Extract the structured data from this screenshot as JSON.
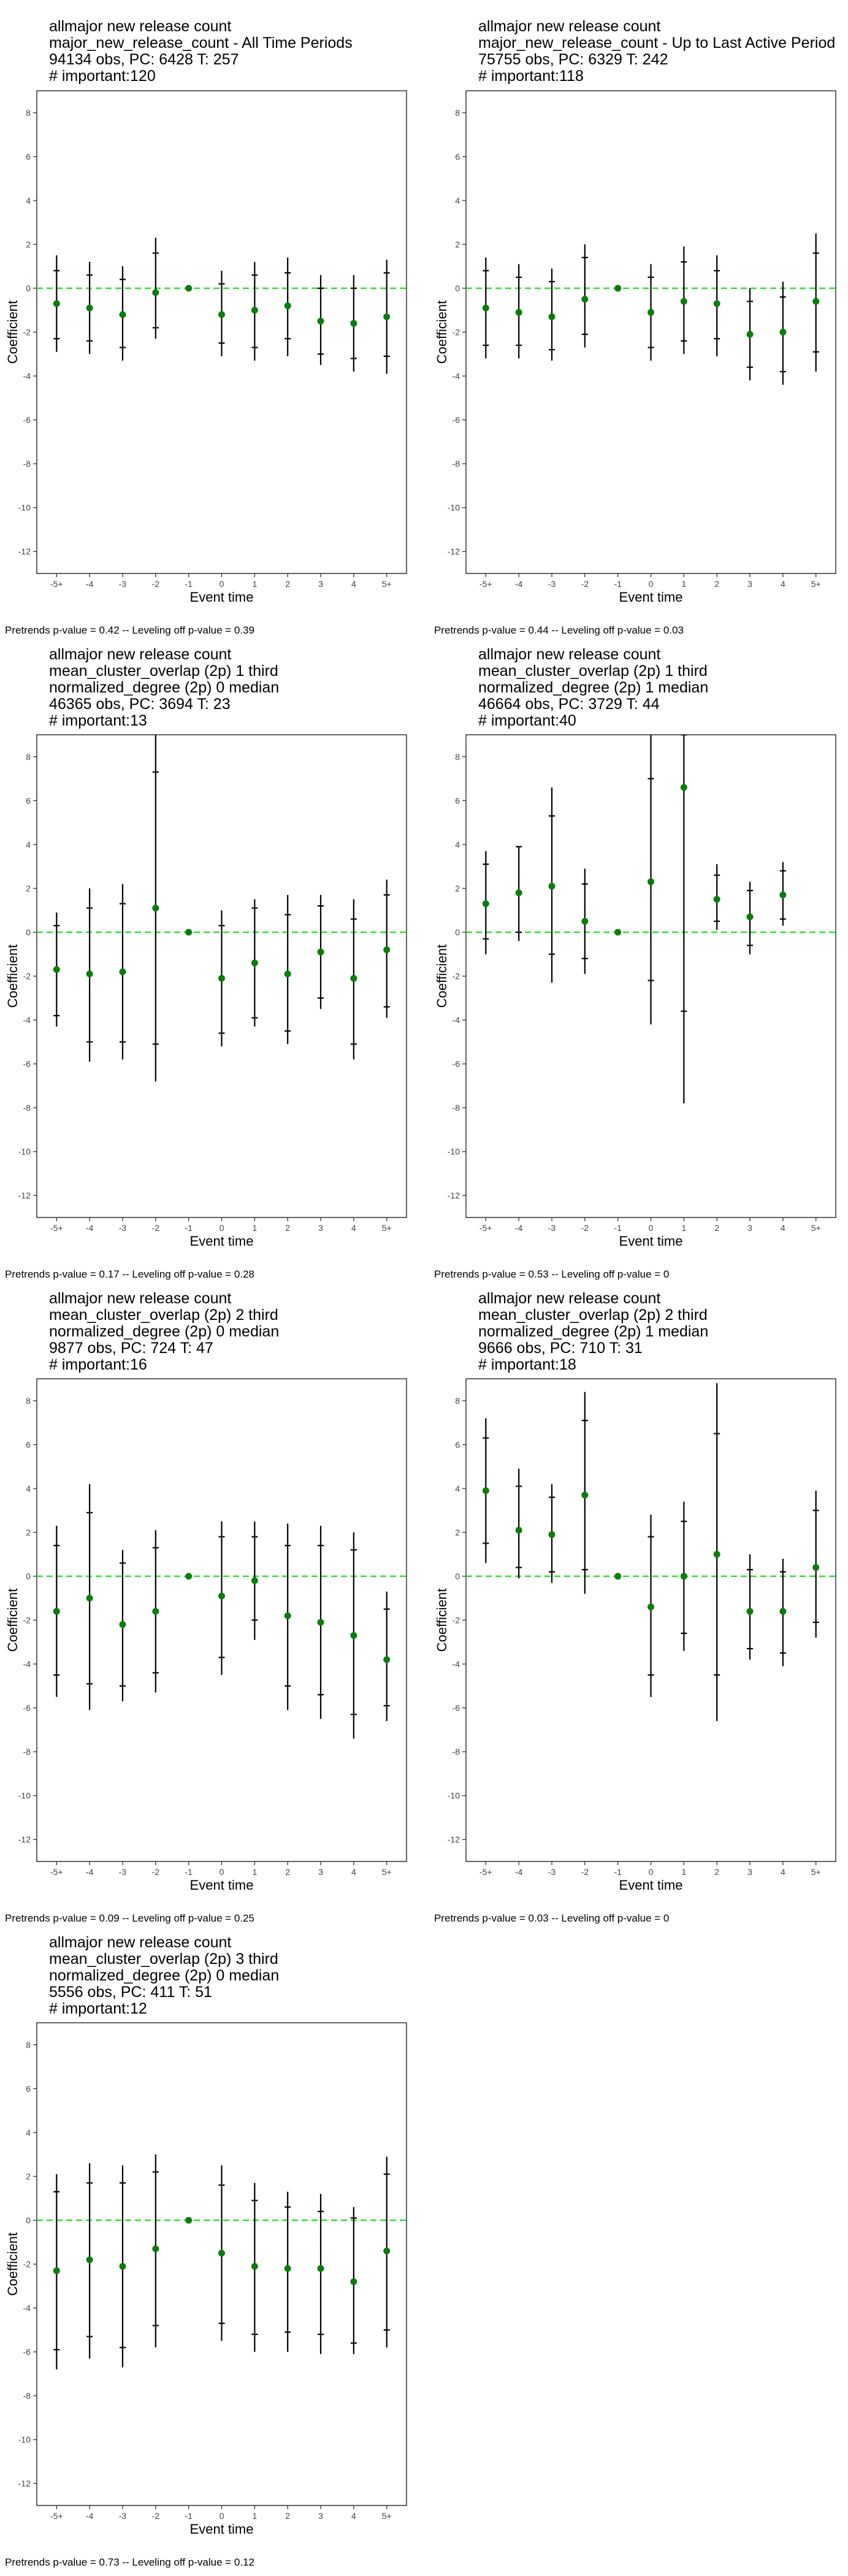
{
  "colors": {
    "point": "#0a7d0a",
    "zero_line": "#33dd33",
    "error_bar": "#000000",
    "frame": "#333333"
  },
  "chart_data": [
    {
      "type": "scatter",
      "title_lines": [
        "allmajor new release count",
        "major_new_release_count - All Time Periods",
        "94134 obs, PC: 6428 T: 257",
        "# important:120"
      ],
      "xlabel": "Event time",
      "ylabel": "Coefficient",
      "categories": [
        "-5+",
        "-4",
        "-3",
        "-2",
        "-1",
        "0",
        "1",
        "2",
        "3",
        "4",
        "5+"
      ],
      "ylim": [
        -13,
        9
      ],
      "yticks": [
        8,
        6,
        4,
        2,
        0,
        -2,
        -4,
        -6,
        -8,
        -10,
        -12
      ],
      "reference_line": 0,
      "series": [
        {
          "values": [
            -0.7,
            -0.9,
            -1.2,
            -0.2,
            0,
            -1.2,
            -1.0,
            -0.8,
            -1.5,
            -1.6,
            -1.3
          ],
          "ci95": [
            [
              -2.9,
              1.5
            ],
            [
              -3.0,
              1.2
            ],
            [
              -3.3,
              1.0
            ],
            [
              -2.3,
              2.3
            ],
            [
              0,
              0
            ],
            [
              -3.1,
              0.8
            ],
            [
              -3.3,
              1.2
            ],
            [
              -3.1,
              1.4
            ],
            [
              -3.5,
              0.6
            ],
            [
              -3.8,
              0.6
            ],
            [
              -3.9,
              1.3
            ]
          ],
          "ci90": [
            [
              -2.3,
              0.8
            ],
            [
              -2.4,
              0.6
            ],
            [
              -2.7,
              0.4
            ],
            [
              -1.8,
              1.6
            ],
            [
              0,
              0
            ],
            [
              -2.5,
              0.2
            ],
            [
              -2.7,
              0.6
            ],
            [
              -2.3,
              0.7
            ],
            [
              -3.0,
              0.0
            ],
            [
              -3.2,
              0.0
            ],
            [
              -3.1,
              0.7
            ]
          ]
        }
      ],
      "caption": "Pretrends p-value = 0.42 -- Leveling off p-value = 0.39"
    },
    {
      "type": "scatter",
      "title_lines": [
        "allmajor new release count",
        "major_new_release_count - Up to Last Active Period",
        "75755 obs, PC: 6329 T: 242",
        "# important:118"
      ],
      "xlabel": "Event time",
      "ylabel": "Coefficient",
      "categories": [
        "-5+",
        "-4",
        "-3",
        "-2",
        "-1",
        "0",
        "1",
        "2",
        "3",
        "4",
        "5+"
      ],
      "ylim": [
        -13,
        9
      ],
      "yticks": [
        8,
        6,
        4,
        2,
        0,
        -2,
        -4,
        -6,
        -8,
        -10,
        -12
      ],
      "reference_line": 0,
      "series": [
        {
          "values": [
            -0.9,
            -1.1,
            -1.3,
            -0.5,
            0,
            -1.1,
            -0.6,
            -0.7,
            -2.1,
            -2.0,
            -0.6
          ],
          "ci95": [
            [
              -3.2,
              1.4
            ],
            [
              -3.2,
              1.1
            ],
            [
              -3.3,
              0.9
            ],
            [
              -2.7,
              2.0
            ],
            [
              0,
              0
            ],
            [
              -3.3,
              1.1
            ],
            [
              -3.0,
              1.9
            ],
            [
              -3.1,
              1.5
            ],
            [
              -4.2,
              0.0
            ],
            [
              -4.4,
              0.3
            ],
            [
              -3.8,
              2.5
            ]
          ],
          "ci90": [
            [
              -2.6,
              0.8
            ],
            [
              -2.6,
              0.5
            ],
            [
              -2.8,
              0.3
            ],
            [
              -2.1,
              1.4
            ],
            [
              0,
              0
            ],
            [
              -2.7,
              0.5
            ],
            [
              -2.4,
              1.2
            ],
            [
              -2.3,
              0.8
            ],
            [
              -3.6,
              -0.6
            ],
            [
              -3.8,
              -0.4
            ],
            [
              -2.9,
              1.6
            ]
          ]
        }
      ],
      "caption": "Pretrends p-value = 0.44 -- Leveling off p-value = 0.03"
    },
    {
      "type": "scatter",
      "title_lines": [
        "allmajor new release count",
        "mean_cluster_overlap (2p) 1 third",
        "normalized_degree (2p) 0 median",
        "46365 obs, PC: 3694 T: 23",
        "# important:13"
      ],
      "xlabel": "Event time",
      "ylabel": "Coefficient",
      "categories": [
        "-5+",
        "-4",
        "-3",
        "-2",
        "-1",
        "0",
        "1",
        "2",
        "3",
        "4",
        "5+"
      ],
      "ylim": [
        -13,
        9
      ],
      "yticks": [
        8,
        6,
        4,
        2,
        0,
        -2,
        -4,
        -6,
        -8,
        -10,
        -12
      ],
      "reference_line": 0,
      "series": [
        {
          "values": [
            -1.7,
            -1.9,
            -1.8,
            1.1,
            0,
            -2.1,
            -1.4,
            -1.9,
            -0.9,
            -2.1,
            -0.8
          ],
          "ci95": [
            [
              -4.3,
              0.9
            ],
            [
              -5.9,
              2.0
            ],
            [
              -5.8,
              2.2
            ],
            [
              -6.8,
              9.0
            ],
            [
              0,
              0
            ],
            [
              -5.2,
              1.0
            ],
            [
              -4.3,
              1.5
            ],
            [
              -5.1,
              1.7
            ],
            [
              -3.5,
              1.7
            ],
            [
              -5.8,
              1.5
            ],
            [
              -3.9,
              2.4
            ]
          ],
          "ci90": [
            [
              -3.8,
              0.3
            ],
            [
              -5.0,
              1.1
            ],
            [
              -5.0,
              1.3
            ],
            [
              -5.1,
              7.3
            ],
            [
              0,
              0
            ],
            [
              -4.6,
              0.3
            ],
            [
              -3.9,
              1.1
            ],
            [
              -4.5,
              0.8
            ],
            [
              -3.0,
              1.2
            ],
            [
              -5.1,
              0.6
            ],
            [
              -3.4,
              1.7
            ]
          ]
        }
      ],
      "caption": "Pretrends p-value = 0.17 -- Leveling off p-value = 0.28"
    },
    {
      "type": "scatter",
      "title_lines": [
        "allmajor new release count",
        "mean_cluster_overlap (2p) 1 third",
        "normalized_degree (2p) 1 median",
        "46664 obs, PC: 3729 T: 44",
        "# important:40"
      ],
      "xlabel": "Event time",
      "ylabel": "Coefficient",
      "categories": [
        "-5+",
        "-4",
        "-3",
        "-2",
        "-1",
        "0",
        "1",
        "2",
        "3",
        "4",
        "5+"
      ],
      "ylim": [
        -13,
        9
      ],
      "yticks": [
        8,
        6,
        4,
        2,
        0,
        -2,
        -4,
        -6,
        -8,
        -10,
        -12
      ],
      "reference_line": 0,
      "series": [
        {
          "values": [
            1.3,
            1.8,
            2.1,
            0.5,
            0,
            2.3,
            6.6,
            1.5,
            0.7,
            1.7,
            null
          ],
          "ci95": [
            [
              -1.0,
              3.7
            ],
            [
              -0.4,
              3.9
            ],
            [
              -2.3,
              6.6
            ],
            [
              -1.9,
              2.9
            ],
            [
              0,
              0
            ],
            [
              -4.2,
              9.0
            ],
            [
              -7.8,
              9.0
            ],
            [
              0.1,
              3.1
            ],
            [
              -1.0,
              2.3
            ],
            [
              0.3,
              3.2
            ],
            null
          ],
          "ci90": [
            [
              -0.3,
              3.1
            ],
            [
              0.0,
              3.9
            ],
            [
              -1.0,
              5.3
            ],
            [
              -1.2,
              2.2
            ],
            [
              0,
              0
            ],
            [
              -2.2,
              7.0
            ],
            [
              -3.6,
              9.0
            ],
            [
              0.5,
              2.6
            ],
            [
              -0.6,
              1.9
            ],
            [
              0.6,
              2.8
            ],
            null
          ]
        }
      ],
      "caption": "Pretrends p-value = 0.53 -- Leveling off p-value = 0"
    },
    {
      "type": "scatter",
      "title_lines": [
        "allmajor new release count",
        "mean_cluster_overlap (2p) 2 third",
        "normalized_degree (2p) 0 median",
        "9877 obs, PC: 724 T: 47",
        "# important:16"
      ],
      "xlabel": "Event time",
      "ylabel": "Coefficient",
      "categories": [
        "-5+",
        "-4",
        "-3",
        "-2",
        "-1",
        "0",
        "1",
        "2",
        "3",
        "4",
        "5+"
      ],
      "ylim": [
        -13,
        9
      ],
      "yticks": [
        8,
        6,
        4,
        2,
        0,
        -2,
        -4,
        -6,
        -8,
        -10,
        -12
      ],
      "reference_line": 0,
      "series": [
        {
          "values": [
            -1.6,
            -1.0,
            -2.2,
            -1.6,
            0,
            -0.9,
            -0.2,
            -1.8,
            -2.1,
            -2.7,
            -3.8
          ],
          "ci95": [
            [
              -5.5,
              2.3
            ],
            [
              -6.1,
              4.2
            ],
            [
              -5.7,
              1.2
            ],
            [
              -5.3,
              2.1
            ],
            [
              0,
              0
            ],
            [
              -4.5,
              2.5
            ],
            [
              -2.9,
              2.5
            ],
            [
              -6.1,
              2.4
            ],
            [
              -6.5,
              2.3
            ],
            [
              -7.4,
              2.0
            ],
            [
              -6.6,
              -0.7
            ]
          ],
          "ci90": [
            [
              -4.5,
              1.4
            ],
            [
              -4.9,
              2.9
            ],
            [
              -5.0,
              0.6
            ],
            [
              -4.4,
              1.3
            ],
            [
              0,
              0
            ],
            [
              -3.7,
              1.8
            ],
            [
              -2.0,
              1.8
            ],
            [
              -5.0,
              1.4
            ],
            [
              -5.4,
              1.4
            ],
            [
              -6.3,
              1.2
            ],
            [
              -5.9,
              -1.5
            ]
          ]
        }
      ],
      "caption": "Pretrends p-value = 0.09 -- Leveling off p-value = 0.25"
    },
    {
      "type": "scatter",
      "title_lines": [
        "allmajor new release count",
        "mean_cluster_overlap (2p) 2 third",
        "normalized_degree (2p) 1 median",
        "9666 obs, PC: 710 T: 31",
        "# important:18"
      ],
      "xlabel": "Event time",
      "ylabel": "Coefficient",
      "categories": [
        "-5+",
        "-4",
        "-3",
        "-2",
        "-1",
        "0",
        "1",
        "2",
        "3",
        "4",
        "5+"
      ],
      "ylim": [
        -13,
        9
      ],
      "yticks": [
        8,
        6,
        4,
        2,
        0,
        -2,
        -4,
        -6,
        -8,
        -10,
        -12
      ],
      "reference_line": 0,
      "series": [
        {
          "values": [
            3.9,
            2.1,
            1.9,
            3.7,
            0,
            -1.4,
            0.0,
            1.0,
            -1.6,
            -1.6,
            0.4
          ],
          "ci95": [
            [
              0.6,
              7.2
            ],
            [
              -0.1,
              4.9
            ],
            [
              -0.3,
              4.2
            ],
            [
              -0.8,
              8.4
            ],
            [
              0,
              0
            ],
            [
              -5.5,
              2.8
            ],
            [
              -3.4,
              3.4
            ],
            [
              -6.6,
              8.8
            ],
            [
              -3.8,
              1.0
            ],
            [
              -4.1,
              0.8
            ],
            [
              -2.8,
              3.9
            ]
          ],
          "ci90": [
            [
              1.5,
              6.3
            ],
            [
              0.4,
              4.1
            ],
            [
              0.2,
              3.6
            ],
            [
              0.3,
              7.1
            ],
            [
              0,
              0
            ],
            [
              -4.5,
              1.8
            ],
            [
              -2.6,
              2.5
            ],
            [
              -4.5,
              6.5
            ],
            [
              -3.3,
              0.3
            ],
            [
              -3.5,
              0.2
            ],
            [
              -2.1,
              3.0
            ]
          ]
        }
      ],
      "caption": "Pretrends p-value = 0.03 -- Leveling off p-value = 0"
    },
    {
      "type": "scatter",
      "title_lines": [
        "allmajor new release count",
        "mean_cluster_overlap (2p) 3 third",
        "normalized_degree (2p) 0 median",
        "5556 obs, PC: 411 T: 51",
        "# important:12"
      ],
      "xlabel": "Event time",
      "ylabel": "Coefficient",
      "categories": [
        "-5+",
        "-4",
        "-3",
        "-2",
        "-1",
        "0",
        "1",
        "2",
        "3",
        "4",
        "5+"
      ],
      "ylim": [
        -13,
        9
      ],
      "yticks": [
        8,
        6,
        4,
        2,
        0,
        -2,
        -4,
        -6,
        -8,
        -10,
        -12
      ],
      "reference_line": 0,
      "series": [
        {
          "values": [
            -2.3,
            -1.8,
            -2.1,
            -1.3,
            0,
            -1.5,
            -2.1,
            -2.2,
            -2.2,
            -2.8,
            -1.4
          ],
          "ci95": [
            [
              -6.8,
              2.1
            ],
            [
              -6.3,
              2.6
            ],
            [
              -6.7,
              2.5
            ],
            [
              -5.8,
              3.0
            ],
            [
              0,
              0
            ],
            [
              -5.5,
              2.5
            ],
            [
              -6.0,
              1.7
            ],
            [
              -6.0,
              1.3
            ],
            [
              -6.1,
              1.2
            ],
            [
              -6.1,
              0.6
            ],
            [
              -5.8,
              2.9
            ]
          ],
          "ci90": [
            [
              -5.9,
              1.3
            ],
            [
              -5.3,
              1.7
            ],
            [
              -5.8,
              1.7
            ],
            [
              -4.8,
              2.2
            ],
            [
              0,
              0
            ],
            [
              -4.7,
              1.6
            ],
            [
              -5.2,
              0.9
            ],
            [
              -5.1,
              0.6
            ],
            [
              -5.2,
              0.4
            ],
            [
              -5.6,
              0.1
            ],
            [
              -5.0,
              2.1
            ]
          ]
        }
      ],
      "caption": "Pretrends p-value = 0.73 -- Leveling off p-value = 0.12"
    }
  ]
}
